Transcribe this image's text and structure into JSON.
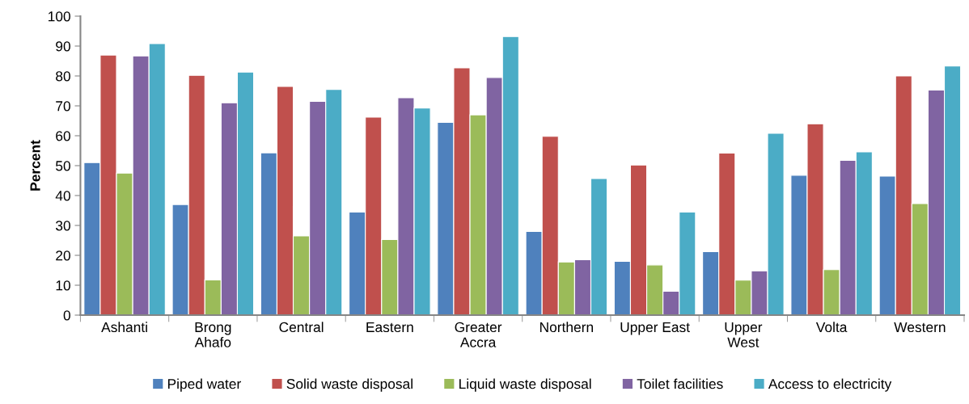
{
  "chart_data": {
    "type": "bar",
    "ylabel": "Percent",
    "categories": [
      "Ashanti",
      "Brong\nAhafo",
      "Central",
      "Eastern",
      "Greater\nAccra",
      "Northern",
      "Upper East",
      "Upper\nWest",
      "Volta",
      "Western"
    ],
    "series": [
      {
        "name": "Piped water",
        "color": "#4f81bd",
        "values": [
          51,
          37,
          54.3,
          34.5,
          64.5,
          28,
          18,
          21.2,
          46.8,
          46.5
        ]
      },
      {
        "name": "Solid waste disposal",
        "color": "#c0504d",
        "values": [
          87,
          80.2,
          76.5,
          66.2,
          82.7,
          59.8,
          50.2,
          54.2,
          64,
          80
        ]
      },
      {
        "name": "Liquid waste disposal",
        "color": "#9bbb59",
        "values": [
          47.5,
          11.8,
          26.5,
          25.3,
          67,
          17.8,
          16.8,
          11.7,
          15.2,
          37.3
        ]
      },
      {
        "name": "Toilet facilities",
        "color": "#8064a2",
        "values": [
          86.7,
          71,
          71.5,
          72.7,
          79.5,
          18.5,
          8,
          14.8,
          51.8,
          75.3
        ]
      },
      {
        "name": "Access to electricity",
        "color": "#4bacc6",
        "values": [
          90.8,
          81.3,
          75.5,
          69.3,
          93.2,
          45.7,
          34.5,
          60.8,
          54.6,
          83.3
        ]
      }
    ],
    "ylim": [
      0,
      100
    ],
    "yticks": [
      0,
      10,
      20,
      30,
      40,
      50,
      60,
      70,
      80,
      90,
      100
    ],
    "grid": false,
    "legend": "bottom"
  }
}
